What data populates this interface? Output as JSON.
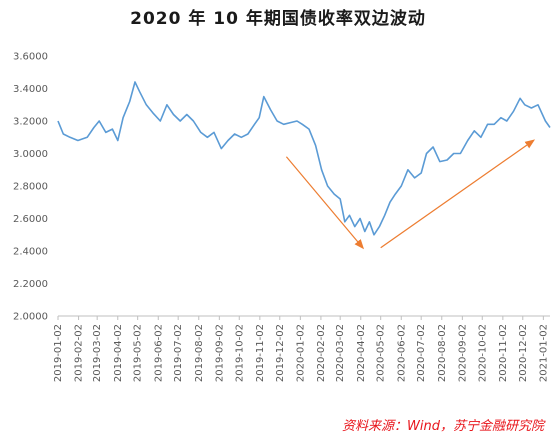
{
  "title": "2020 年 10 年期国债收率双边波动",
  "source": "资料来源：Wind，苏宁金融研究院",
  "chart_data": {
    "type": "line",
    "title": "2020 年 10 年期国债收率双边波动",
    "xlabel": "",
    "ylabel": "",
    "ylim": [
      2.0,
      3.6
    ],
    "yticks": [
      "2.0000",
      "2.2000",
      "2.4000",
      "2.6000",
      "2.8000",
      "3.0000",
      "3.2000",
      "3.4000",
      "3.6000"
    ],
    "xticks": [
      "2019-01-02",
      "2019-02-02",
      "2019-03-02",
      "2019-04-02",
      "2019-05-02",
      "2019-06-02",
      "2019-07-02",
      "2019-08-02",
      "2019-09-02",
      "2019-10-02",
      "2019-11-02",
      "2019-12-02",
      "2020-01-02",
      "2020-02-02",
      "2020-03-02",
      "2020-04-02",
      "2020-05-02",
      "2020-06-02",
      "2020-07-02",
      "2020-08-02",
      "2020-09-02",
      "2020-10-02",
      "2020-11-02",
      "2020-12-02",
      "2021-01-02"
    ],
    "line_color": "#5b9bd5",
    "arrow_color": "#ed7d31",
    "grid": false,
    "series": [
      {
        "x": [
          "2019-01-02",
          "2019-01-10",
          "2019-01-20",
          "2019-02-01",
          "2019-02-15",
          "2019-02-25",
          "2019-03-05",
          "2019-03-15",
          "2019-03-25",
          "2019-04-02",
          "2019-04-10",
          "2019-04-20",
          "2019-04-28",
          "2019-05-05",
          "2019-05-15",
          "2019-05-25",
          "2019-06-05",
          "2019-06-15",
          "2019-06-25",
          "2019-07-05",
          "2019-07-15",
          "2019-07-25",
          "2019-08-05",
          "2019-08-15",
          "2019-08-25",
          "2019-09-05",
          "2019-09-15",
          "2019-09-25",
          "2019-10-05",
          "2019-10-15",
          "2019-10-25",
          "2019-11-01",
          "2019-11-08",
          "2019-11-18",
          "2019-11-28",
          "2019-12-08",
          "2019-12-18",
          "2019-12-28",
          "2020-01-05",
          "2020-01-15",
          "2020-01-25",
          "2020-02-03",
          "2020-02-12",
          "2020-02-22",
          "2020-03-02",
          "2020-03-09",
          "2020-03-16",
          "2020-03-24",
          "2020-04-01",
          "2020-04-08",
          "2020-04-15",
          "2020-04-22",
          "2020-04-30",
          "2020-05-08",
          "2020-05-16",
          "2020-05-24",
          "2020-06-02",
          "2020-06-12",
          "2020-06-22",
          "2020-07-02",
          "2020-07-10",
          "2020-07-20",
          "2020-07-30",
          "2020-08-10",
          "2020-08-20",
          "2020-08-30",
          "2020-09-10",
          "2020-09-20",
          "2020-09-30",
          "2020-10-10",
          "2020-10-20",
          "2020-10-30",
          "2020-11-08",
          "2020-11-18",
          "2020-11-28",
          "2020-12-05",
          "2020-12-15",
          "2020-12-25",
          "2021-01-05",
          "2021-01-12"
        ],
        "values": [
          3.2,
          3.12,
          3.1,
          3.08,
          3.1,
          3.16,
          3.2,
          3.13,
          3.15,
          3.08,
          3.22,
          3.32,
          3.44,
          3.38,
          3.3,
          3.25,
          3.2,
          3.3,
          3.24,
          3.2,
          3.24,
          3.2,
          3.13,
          3.1,
          3.13,
          3.03,
          3.08,
          3.12,
          3.1,
          3.12,
          3.18,
          3.22,
          3.35,
          3.27,
          3.2,
          3.18,
          3.19,
          3.2,
          3.18,
          3.15,
          3.05,
          2.9,
          2.8,
          2.75,
          2.72,
          2.58,
          2.62,
          2.55,
          2.6,
          2.52,
          2.58,
          2.5,
          2.55,
          2.62,
          2.7,
          2.75,
          2.8,
          2.9,
          2.85,
          2.88,
          3.0,
          3.04,
          2.95,
          2.96,
          3.0,
          3.0,
          3.08,
          3.14,
          3.1,
          3.18,
          3.18,
          3.22,
          3.2,
          3.26,
          3.34,
          3.3,
          3.28,
          3.3,
          3.2,
          3.16
        ]
      }
    ],
    "annotations": [
      {
        "type": "arrow",
        "from": [
          "2019-12-12",
          2.98
        ],
        "to": [
          "2020-04-05",
          2.42
        ]
      },
      {
        "type": "arrow",
        "from": [
          "2020-05-02",
          2.42
        ],
        "to": [
          "2020-12-18",
          3.08
        ]
      }
    ]
  }
}
